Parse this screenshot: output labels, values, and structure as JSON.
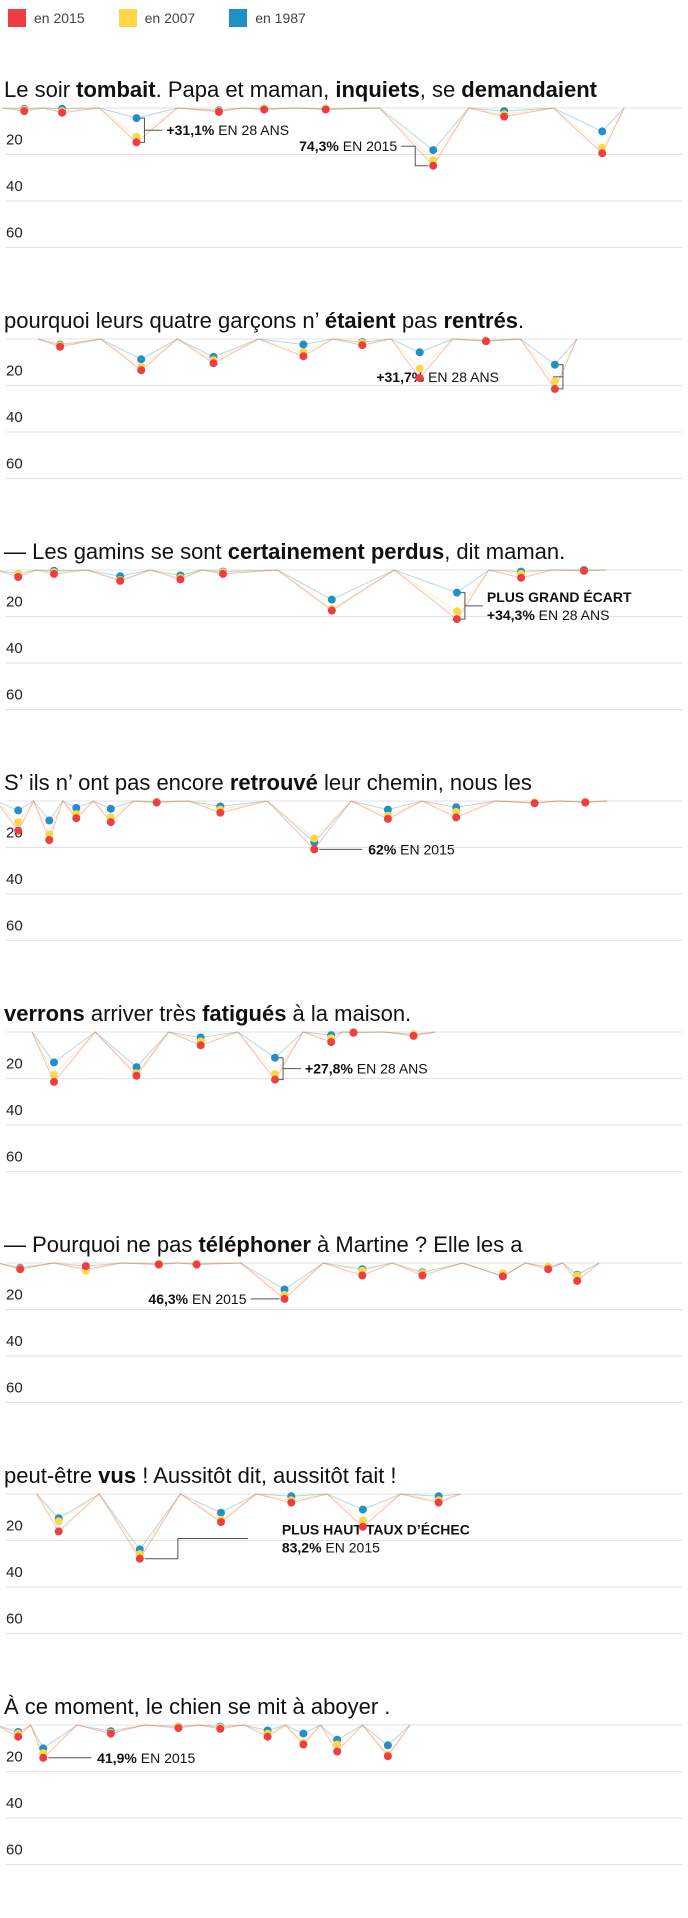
{
  "legend": [
    {
      "label": "en 2015",
      "color": "#ef3e42"
    },
    {
      "label": "en 2007",
      "color": "#fcd746"
    },
    {
      "label": "en 1987",
      "color": "#2390c5"
    }
  ],
  "chart_data": {
    "type": "scatter",
    "description_units": "taux d'erreur (%) par mot, dictée",
    "yticks": [
      20,
      40,
      60
    ],
    "ylim": [
      0,
      60
    ],
    "grid": true,
    "series_names": [
      "en 2015",
      "en 2007",
      "en 1987"
    ],
    "rows": [
      {
        "words": [
          {
            "t": "Le soir ",
            "b": false
          },
          {
            "t": "tombait",
            "b": true
          },
          {
            "t": ". Papa et maman, ",
            "b": false
          },
          {
            "t": "inquiets",
            "b": true
          },
          {
            "t": ", se ",
            "b": false
          },
          {
            "t": "demandaient",
            "b": true
          }
        ],
        "points": [
          {
            "x": 0.027,
            "v2015": 4,
            "v2007": 2,
            "v1987": 1
          },
          {
            "x": 0.083,
            "v2015": 6,
            "v2007": 4,
            "v1987": 1
          },
          {
            "x": 0.193,
            "v2015": 44,
            "v2007": 37,
            "v1987": 13
          },
          {
            "x": 0.315,
            "v2015": 5,
            "v2007": 4,
            "v1987": 3
          },
          {
            "x": 0.382,
            "v2015": 2,
            "v2007": 1,
            "v1987": 1
          },
          {
            "x": 0.473,
            "v2015": 2,
            "v2007": 1,
            "v1987": 1
          },
          {
            "x": 0.632,
            "v2015": 74,
            "v2007": 67,
            "v1987": 54
          },
          {
            "x": 0.737,
            "v2015": 11,
            "v2007": 8,
            "v1987": 4
          },
          {
            "x": 0.882,
            "v2015": 58,
            "v2007": 51,
            "v1987": 30
          }
        ],
        "annotations": [
          {
            "x": 0.193,
            "from": 13,
            "to": 44,
            "dir": "right",
            "lines": [
              [
                {
                  "t": "+31,1%",
                  "b": true
                },
                {
                  "t": " EN 28 ANS",
                  "b": false
                }
              ]
            ]
          },
          {
            "x": 0.632,
            "from": 74,
            "to": 74,
            "dir": "left",
            "kink": 49,
            "lines": [
              [
                {
                  "t": "74,3%",
                  "b": true
                },
                {
                  "t": " EN 2015",
                  "b": false
                }
              ]
            ]
          }
        ]
      },
      {
        "words": [
          {
            "t": "pourquoi leurs quatre garçons n’ ",
            "b": false
          },
          {
            "t": "étaient",
            "b": true
          },
          {
            "t": " pas ",
            "b": false
          },
          {
            "t": "rentrés",
            "b": true
          },
          {
            "t": ".",
            "b": false
          }
        ],
        "points": [
          {
            "x": 0.08,
            "v2015": 10,
            "v2007": 8,
            "v1987": 7
          },
          {
            "x": 0.2,
            "v2015": 40,
            "v2007": 36,
            "v1987": 26
          },
          {
            "x": 0.307,
            "v2015": 31,
            "v2007": 27,
            "v1987": 23
          },
          {
            "x": 0.44,
            "v2015": 22,
            "v2007": 17,
            "v1987": 7
          },
          {
            "x": 0.527,
            "v2015": 8,
            "v2007": 5,
            "v1987": 4
          },
          {
            "x": 0.612,
            "v2015": 50,
            "v2007": 38,
            "v1987": 17
          },
          {
            "x": 0.71,
            "v2015": 3,
            "v2007": 2,
            "v1987": 2
          },
          {
            "x": 0.812,
            "v2015": 64,
            "v2007": 54,
            "v1987": 33
          }
        ],
        "annotations": [
          {
            "x": 0.812,
            "from": 33,
            "to": 64,
            "dir": "left",
            "lines": [
              [
                {
                  "t": "+31,7%",
                  "b": true
                },
                {
                  "t": " EN 28 ANS",
                  "b": false
                }
              ]
            ]
          }
        ]
      },
      {
        "words": [
          {
            "t": "— Les gamins se sont ",
            "b": false
          },
          {
            "t": "certainement perdus",
            "b": true
          },
          {
            "t": ", dit maman.",
            "b": false
          }
        ],
        "points": [
          {
            "x": 0.018,
            "v2015": 9,
            "v2007": 5,
            "v1987": 5
          },
          {
            "x": 0.071,
            "v2015": 5,
            "v2007": 3,
            "v1987": 1
          },
          {
            "x": 0.169,
            "v2015": 14,
            "v2007": 13,
            "v1987": 8
          },
          {
            "x": 0.258,
            "v2015": 12,
            "v2007": 10,
            "v1987": 7
          },
          {
            "x": 0.321,
            "v2015": 5,
            "v2007": 3,
            "v1987": 2
          },
          {
            "x": 0.482,
            "v2015": 52,
            "v2007": 50,
            "v1987": 38
          },
          {
            "x": 0.667,
            "v2015": 63,
            "v2007": 53,
            "v1987": 29
          },
          {
            "x": 0.762,
            "v2015": 10,
            "v2007": 5,
            "v1987": 2
          },
          {
            "x": 0.855,
            "v2015": 1,
            "v2007": 1,
            "v1987": 0
          }
        ],
        "annotations": [
          {
            "x": 0.667,
            "from": 29,
            "to": 63,
            "dir": "right",
            "lines": [
              [
                {
                  "t": "PLUS GRAND ÉCART",
                  "b": true
                }
              ],
              [
                {
                  "t": "+34,3%",
                  "b": true
                },
                {
                  "t": " EN 28 ANS",
                  "b": false
                }
              ]
            ]
          }
        ]
      },
      {
        "words": [
          {
            "t": "S’ ils n’ ont pas encore ",
            "b": false
          },
          {
            "t": "retrouvé",
            "b": true
          },
          {
            "t": " leur chemin, nous les",
            "b": false
          }
        ],
        "points": [
          {
            "x": 0.018,
            "v2015": 38,
            "v2007": 27,
            "v1987": 12
          },
          {
            "x": 0.064,
            "v2015": 50,
            "v2007": 43,
            "v1987": 25
          },
          {
            "x": 0.104,
            "v2015": 22,
            "v2007": 17,
            "v1987": 9
          },
          {
            "x": 0.155,
            "v2015": 27,
            "v2007": 21,
            "v1987": 10
          },
          {
            "x": 0.223,
            "v2015": 2,
            "v2007": 1,
            "v1987": 1
          },
          {
            "x": 0.317,
            "v2015": 15,
            "v2007": 11,
            "v1987": 7
          },
          {
            "x": 0.456,
            "v2015": 62,
            "v2007": 48,
            "v1987": 53
          },
          {
            "x": 0.565,
            "v2015": 23,
            "v2007": 19,
            "v1987": 11
          },
          {
            "x": 0.666,
            "v2015": 21,
            "v2007": 14,
            "v1987": 8
          },
          {
            "x": 0.782,
            "v2015": 3,
            "v2007": 2,
            "v1987": 2
          },
          {
            "x": 0.857,
            "v2015": 2,
            "v2007": 1,
            "v1987": 1
          }
        ],
        "annotations": [
          {
            "x": 0.456,
            "from": 62,
            "to": 62,
            "dir": "right",
            "lines": [
              [
                {
                  "t": "62%",
                  "b": true
                },
                {
                  "t": " EN 2015",
                  "b": false
                }
              ]
            ]
          }
        ]
      },
      {
        "words": [
          {
            "t": "verrons",
            "b": true
          },
          {
            "t": " arriver très ",
            "b": false
          },
          {
            "t": "fatigués",
            "b": true
          },
          {
            "t": " à la maison.",
            "b": false
          }
        ],
        "points": [
          {
            "x": 0.071,
            "v2015": 64,
            "v2007": 55,
            "v1987": 39
          },
          {
            "x": 0.193,
            "v2015": 56,
            "v2007": 53,
            "v1987": 45
          },
          {
            "x": 0.288,
            "v2015": 17,
            "v2007": 12,
            "v1987": 7
          },
          {
            "x": 0.398,
            "v2015": 61,
            "v2007": 54,
            "v1987": 33
          },
          {
            "x": 0.481,
            "v2015": 13,
            "v2007": 8,
            "v1987": 4
          },
          {
            "x": 0.514,
            "v2015": 1,
            "v2007": 0,
            "v1987": 0
          },
          {
            "x": 0.603,
            "v2015": 5,
            "v2007": 3,
            "v1987": 3
          }
        ],
        "annotations": [
          {
            "x": 0.398,
            "from": 33,
            "to": 61,
            "dir": "right",
            "lines": [
              [
                {
                  "t": "+27,8%",
                  "b": true
                },
                {
                  "t": " EN 28 ANS",
                  "b": false
                }
              ]
            ]
          }
        ]
      },
      {
        "words": [
          {
            "t": "— Pourquoi ne pas ",
            "b": false
          },
          {
            "t": "téléphoner",
            "b": true
          },
          {
            "t": " à Martine ? Elle les a",
            "b": false
          }
        ],
        "points": [
          {
            "x": 0.021,
            "v2015": 8,
            "v2007": 7,
            "v1987": 6
          },
          {
            "x": 0.118,
            "v2015": 4,
            "v2007": 10,
            "v1987": 8
          },
          {
            "x": 0.226,
            "v2015": 2,
            "v2007": 1,
            "v1987": 1
          },
          {
            "x": 0.282,
            "v2015": 2,
            "v2007": 1,
            "v1987": 1
          },
          {
            "x": 0.412,
            "v2015": 46,
            "v2007": 41,
            "v1987": 34
          },
          {
            "x": 0.527,
            "v2015": 16,
            "v2007": 10,
            "v1987": 8
          },
          {
            "x": 0.616,
            "v2015": 16,
            "v2007": 13,
            "v1987": 12
          },
          {
            "x": 0.735,
            "v2015": 17,
            "v2007": 13,
            "v1987": 17
          },
          {
            "x": 0.802,
            "v2015": 8,
            "v2007": 5,
            "v1987": 5
          },
          {
            "x": 0.845,
            "v2015": 23,
            "v2007": 16,
            "v1987": 15
          }
        ],
        "annotations": [
          {
            "x": 0.412,
            "from": 46,
            "to": 46,
            "dir": "left",
            "lines": [
              [
                {
                  "t": "46,3%",
                  "b": true
                },
                {
                  "t": " EN 2015",
                  "b": false
                }
              ]
            ]
          }
        ]
      },
      {
        "words": [
          {
            "t": "peut-être ",
            "b": false
          },
          {
            "t": "vus",
            "b": true
          },
          {
            "t": " ! Aussitôt dit, aussitôt fait !",
            "b": false
          }
        ],
        "points": [
          {
            "x": 0.078,
            "v2015": 48,
            "v2007": 35,
            "v1987": 31
          },
          {
            "x": 0.198,
            "v2015": 83,
            "v2007": 77,
            "v1987": 71
          },
          {
            "x": 0.318,
            "v2015": 36,
            "v2007": 33,
            "v1987": 24
          },
          {
            "x": 0.422,
            "v2015": 11,
            "v2007": 8,
            "v1987": 3
          },
          {
            "x": 0.528,
            "v2015": 42,
            "v2007": 34,
            "v1987": 20
          },
          {
            "x": 0.64,
            "v2015": 11,
            "v2007": 8,
            "v1987": 3
          }
        ],
        "annotations": [
          {
            "x": 0.198,
            "from": 83,
            "to": 83,
            "dir": "right",
            "kink": 57,
            "lines": [
              [
                {
                  "t": "PLUS HAUT TAUX D’ÉCHEC",
                  "b": true
                }
              ],
              [
                {
                  "t": "83,2%",
                  "b": true
                },
                {
                  "t": " EN 2015",
                  "b": false
                }
              ]
            ]
          }
        ]
      },
      {
        "words": [
          {
            "t": "À ce moment, le chien se mit à aboyer .",
            "b": false
          }
        ],
        "points": [
          {
            "x": 0.018,
            "v2015": 15,
            "v2007": 11,
            "v1987": 9
          },
          {
            "x": 0.055,
            "v2015": 42,
            "v2007": 36,
            "v1987": 30
          },
          {
            "x": 0.155,
            "v2015": 11,
            "v2007": 10,
            "v1987": 8
          },
          {
            "x": 0.255,
            "v2015": 4,
            "v2007": 2,
            "v1987": 2
          },
          {
            "x": 0.317,
            "v2015": 5,
            "v2007": 3,
            "v1987": 2
          },
          {
            "x": 0.387,
            "v2015": 15,
            "v2007": 11,
            "v1987": 7
          },
          {
            "x": 0.44,
            "v2015": 25,
            "v2007": 23,
            "v1987": 11
          },
          {
            "x": 0.49,
            "v2015": 34,
            "v2007": 25,
            "v1987": 19
          },
          {
            "x": 0.565,
            "v2015": 40,
            "v2007": 38,
            "v1987": 26
          }
        ],
        "annotations": [
          {
            "x": 0.055,
            "from": 42,
            "to": 42,
            "dir": "right",
            "lines": [
              [
                {
                  "t": "41,9%",
                  "b": true
                },
                {
                  "t": " EN 2015",
                  "b": false
                }
              ]
            ]
          }
        ]
      }
    ]
  }
}
